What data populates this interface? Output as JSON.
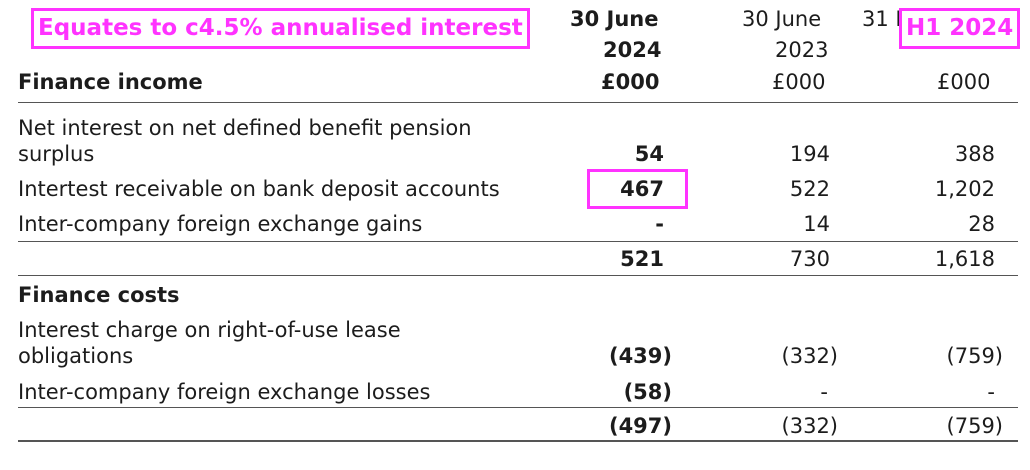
{
  "annotations": {
    "note": "Equates to c4.5% annualised interest",
    "period_label": "H1 2024"
  },
  "table": {
    "columns": [
      {
        "line1": "30 June",
        "line2": "2024",
        "unit": "£000"
      },
      {
        "line1": "30 June",
        "line2": "2023",
        "unit": "£000"
      },
      {
        "line1": "31 D",
        "line2": "",
        "unit": "£000"
      }
    ],
    "finance_income_heading": "Finance income",
    "income_rows": [
      {
        "label_1": "Net interest on net defined benefit pension",
        "label_2": "surplus",
        "v2024": "54",
        "v2023": "194",
        "vdec": "388"
      },
      {
        "label_1": "Intertest receivable on bank deposit accounts",
        "v2024": "467",
        "v2023": "522",
        "vdec": "1,202"
      },
      {
        "label_1": "Inter-company foreign exchange gains",
        "v2024": "-",
        "v2023": "14",
        "vdec": "28"
      }
    ],
    "income_total": {
      "v2024": "521",
      "v2023": "730",
      "vdec": "1,618"
    },
    "finance_costs_heading": "Finance costs",
    "cost_rows": [
      {
        "label_1": "Interest charge on right-of-use lease",
        "label_2": "obligations",
        "v2024": "(439)",
        "v2023": "(332)",
        "vdec": "(759)"
      },
      {
        "label_1": "Inter-company foreign exchange losses",
        "v2024": "(58)",
        "v2023": "-",
        "vdec": "-"
      }
    ],
    "costs_total": {
      "v2024": "(497)",
      "v2023": "(332)",
      "vdec": "(759)"
    }
  }
}
